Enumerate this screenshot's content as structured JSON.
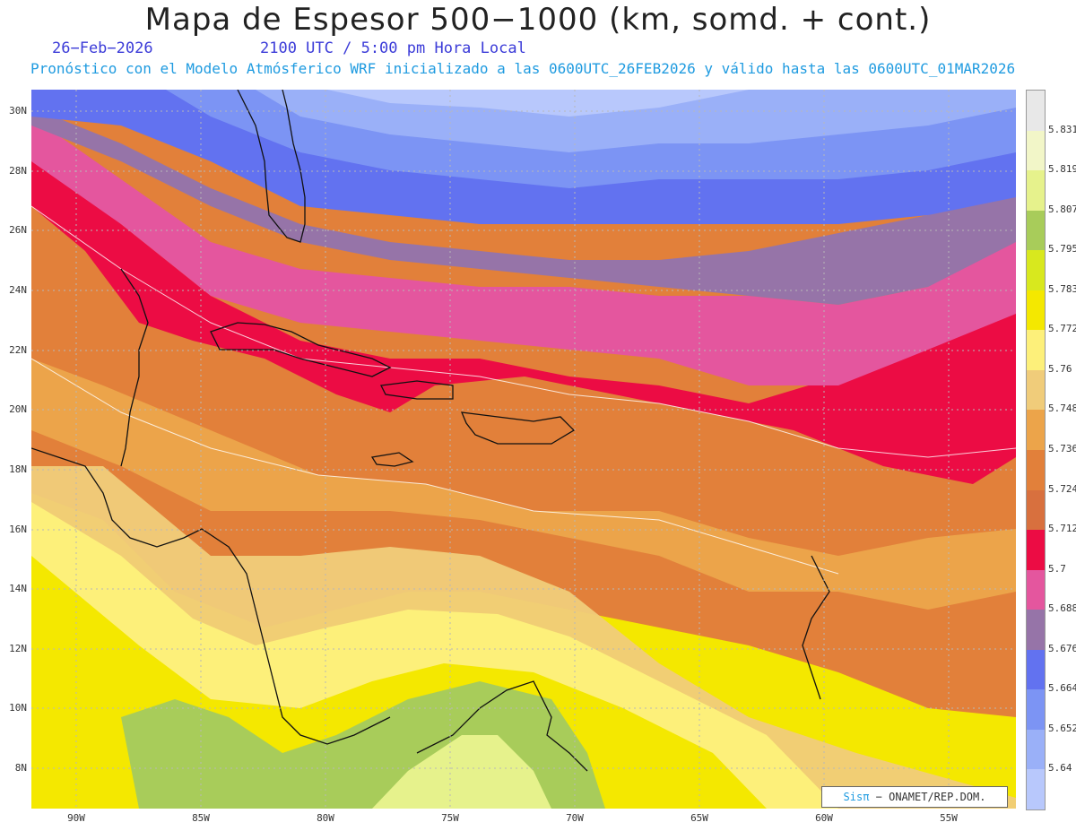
{
  "title": "Mapa de Espesor 500−1000 (km, somd. + cont.)",
  "date": "26−Feb−2026",
  "time": "2100 UTC / 5:00 pm Hora Local",
  "model": "Pronóstico con el Modelo Atmósferico WRF inicializado a las 0600UTC_26FEB2026 y válido hasta las  0600UTC_01MAR2026",
  "lat_labels": [
    "30N",
    "28N",
    "26N",
    "24N",
    "22N",
    "20N",
    "18N",
    "16N",
    "14N",
    "12N",
    "10N",
    "8N"
  ],
  "lon_labels": [
    "90W",
    "85W",
    "80W",
    "75W",
    "70W",
    "65W",
    "60W",
    "55W"
  ],
  "legend": {
    "labels": [
      "5.831",
      "5.819",
      "5.807",
      "5.795",
      "5.783",
      "5.772",
      "5.76",
      "5.748",
      "5.736",
      "5.724",
      "5.712",
      "5.7",
      "5.688",
      "5.676",
      "5.664",
      "5.652",
      "5.64"
    ],
    "colors": [
      "#e8e8e8",
      "#f2f6c8",
      "#e6f28c",
      "#a8cc5a",
      "#d8e81e",
      "#f4e800",
      "#fdf07a",
      "#f0cc7a",
      "#eca44a",
      "#e2803a",
      "#d8703e",
      "#ec0c44",
      "#e4569e",
      "#9674a8",
      "#6272f0",
      "#7c94f4",
      "#9ab0f8",
      "#b8c8fc"
    ]
  },
  "credit": {
    "brand": "Sisπ",
    "text": "− ONAMET/REP.DOM."
  }
}
